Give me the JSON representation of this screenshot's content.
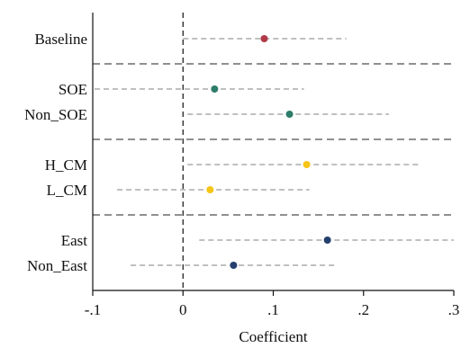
{
  "chart_data": {
    "type": "scatter",
    "title": "",
    "xlabel": "Coefficient",
    "ylabel": "",
    "xlim": [
      -0.1,
      0.3
    ],
    "x_ticks": [
      -0.1,
      0,
      0.1,
      0.2,
      0.3
    ],
    "x_tick_labels": [
      "-.1",
      "0",
      ".1",
      ".2",
      ".3"
    ],
    "reference_line": 0,
    "grid": false,
    "legend": "none",
    "groups": [
      {
        "label": "Baseline",
        "estimate": 0.09,
        "ci": [
          0.0,
          0.181
        ],
        "color": "#b03a48"
      },
      {
        "label": "SOE",
        "estimate": 0.035,
        "ci": [
          -0.098,
          0.134
        ],
        "color": "#2e7d6b"
      },
      {
        "label": "Non_SOE",
        "estimate": 0.118,
        "ci": [
          0.005,
          0.228
        ],
        "color": "#2e7d6b"
      },
      {
        "label": "H_CM",
        "estimate": 0.137,
        "ci": [
          0.005,
          0.262
        ],
        "color": "#f5c518"
      },
      {
        "label": "L_CM",
        "estimate": 0.03,
        "ci": [
          -0.073,
          0.14
        ],
        "color": "#f5c518"
      },
      {
        "label": "East",
        "estimate": 0.16,
        "ci": [
          0.018,
          0.3
        ],
        "color": "#25406e"
      },
      {
        "label": "Non_East",
        "estimate": 0.056,
        "ci": [
          -0.058,
          0.171
        ],
        "color": "#25406e"
      }
    ]
  }
}
